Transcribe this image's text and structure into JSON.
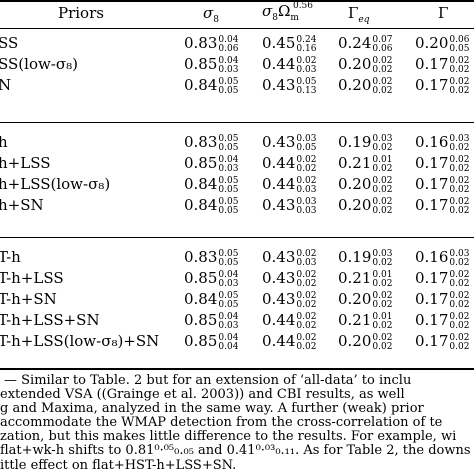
{
  "header": {
    "priors": "Priors",
    "sigma8": "σ",
    "sigma8_sub": "8",
    "combo_main": "σ",
    "combo_sub8": "8",
    "combo_omega": "Ω",
    "combo_sup": "0.56",
    "combo_sub": "m",
    "gamma_eq": "Γ",
    "gamma_eq_sub": "eq",
    "gamma": "Γ"
  },
  "blocks": [
    {
      "rows": [
        {
          "prior": "SS",
          "v": [
            [
              "0.83",
              "0.04",
              "0.06"
            ],
            [
              "0.45",
              "0.24",
              "0.16"
            ],
            [
              "0.24",
              "0.07",
              "0.06"
            ],
            [
              "0.20",
              "0.06",
              "0.05"
            ]
          ]
        },
        {
          "prior": "SS(low-σ₈)",
          "v": [
            [
              "0.85",
              "0.04",
              "0.03"
            ],
            [
              "0.44",
              "0.02",
              "0.03"
            ],
            [
              "0.20",
              "0.02",
              "0.02"
            ],
            [
              "0.17",
              "0.02",
              "0.02"
            ]
          ]
        },
        {
          "prior": "N",
          "v": [
            [
              "0.84",
              "0.05",
              "0.05"
            ],
            [
              "0.43",
              "0.05",
              "0.13"
            ],
            [
              "0.20",
              "0.02",
              "0.02"
            ],
            [
              "0.17",
              "0.02",
              "0.02"
            ]
          ]
        }
      ]
    },
    {
      "rows": [
        {
          "prior": "h",
          "v": [
            [
              "0.83",
              "0.05",
              "0.05"
            ],
            [
              "0.43",
              "0.03",
              "0.05"
            ],
            [
              "0.19",
              "0.03",
              "0.02"
            ],
            [
              "0.16",
              "0.03",
              "0.02"
            ]
          ]
        },
        {
          "prior": "h+LSS",
          "v": [
            [
              "0.85",
              "0.04",
              "0.03"
            ],
            [
              "0.44",
              "0.02",
              "0.02"
            ],
            [
              "0.21",
              "0.01",
              "0.02"
            ],
            [
              "0.17",
              "0.02",
              "0.02"
            ]
          ]
        },
        {
          "prior": "h+LSS(low-σ₈)",
          "v": [
            [
              "0.84",
              "0.05",
              "0.05"
            ],
            [
              "0.44",
              "0.02",
              "0.03"
            ],
            [
              "0.20",
              "0.02",
              "0.02"
            ],
            [
              "0.17",
              "0.02",
              "0.02"
            ]
          ]
        },
        {
          "prior": "h+SN",
          "v": [
            [
              "0.84",
              "0.05",
              "0.05"
            ],
            [
              "0.43",
              "0.03",
              "0.03"
            ],
            [
              "0.20",
              "0.02",
              "0.02"
            ],
            [
              "0.17",
              "0.02",
              "0.02"
            ]
          ]
        }
      ]
    },
    {
      "rows": [
        {
          "prior": "T-h",
          "v": [
            [
              "0.83",
              "0.05",
              "0.05"
            ],
            [
              "0.43",
              "0.02",
              "0.03"
            ],
            [
              "0.19",
              "0.03",
              "0.02"
            ],
            [
              "0.16",
              "0.03",
              "0.02"
            ]
          ]
        },
        {
          "prior": "T-h+LSS",
          "v": [
            [
              "0.85",
              "0.04",
              "0.03"
            ],
            [
              "0.43",
              "0.02",
              "0.02"
            ],
            [
              "0.21",
              "0.01",
              "0.02"
            ],
            [
              "0.17",
              "0.02",
              "0.02"
            ]
          ]
        },
        {
          "prior": "T-h+SN",
          "v": [
            [
              "0.84",
              "0.05",
              "0.05"
            ],
            [
              "0.43",
              "0.02",
              "0.02"
            ],
            [
              "0.20",
              "0.02",
              "0.02"
            ],
            [
              "0.17",
              "0.02",
              "0.02"
            ]
          ]
        },
        {
          "prior": "T-h+LSS+SN",
          "v": [
            [
              "0.85",
              "0.04",
              "0.03"
            ],
            [
              "0.44",
              "0.02",
              "0.02"
            ],
            [
              "0.21",
              "0.01",
              "0.02"
            ],
            [
              "0.17",
              "0.02",
              "0.02"
            ]
          ]
        },
        {
          "prior": "T-h+LSS(low-σ₈)+SN",
          "v": [
            [
              "0.85",
              "0.04",
              "0.04"
            ],
            [
              "0.44",
              "0.02",
              "0.02"
            ],
            [
              "0.20",
              "0.02",
              "0.02"
            ],
            [
              "0.17",
              "0.02",
              "0.02"
            ]
          ]
        }
      ]
    }
  ],
  "caption_lines": [
    "— Similar to Table. 2 but for an extension of ‘all-data’ to inclu",
    "extended VSA ((Grainge et al.  2003)) and CBI results, as well",
    "g and Maxima, analyzed in the same way. A further (weak) prior",
    "accommodate the WMAP detection from the cross-correlation of te",
    "zation, but this makes little difference to the results. For example, wi",
    "flat+wk-h shifts to 0.81⁰·⁰⁵₀.₀₅ and 0.41⁰·⁰³₀.₁₁. As for Table 2, the downs",
    "ittle effect on flat+HST-h+LSS+SN."
  ]
}
